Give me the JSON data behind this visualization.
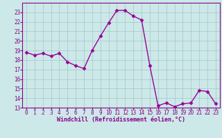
{
  "x": [
    0,
    1,
    2,
    3,
    4,
    5,
    6,
    7,
    8,
    9,
    10,
    11,
    12,
    13,
    14,
    15,
    16,
    17,
    18,
    19,
    20,
    21,
    22,
    23
  ],
  "y": [
    18.8,
    18.5,
    18.7,
    18.4,
    18.7,
    17.8,
    17.4,
    17.1,
    19.0,
    20.5,
    21.9,
    23.2,
    23.2,
    22.6,
    22.2,
    17.4,
    13.2,
    13.5,
    13.1,
    13.4,
    13.5,
    14.8,
    14.7,
    13.4
  ],
  "line_color": "#990099",
  "marker_color": "#990099",
  "bg_color": "#cce8e8",
  "grid_color": "#aacccc",
  "axis_color": "#880088",
  "xlabel": "Windchill (Refroidissement éolien,°C)",
  "ylim_min": 13,
  "ylim_max": 24,
  "yticks": [
    13,
    14,
    15,
    16,
    17,
    18,
    19,
    20,
    21,
    22,
    23
  ],
  "xticks": [
    0,
    1,
    2,
    3,
    4,
    5,
    6,
    7,
    8,
    9,
    10,
    11,
    12,
    13,
    14,
    15,
    16,
    17,
    18,
    19,
    20,
    21,
    22,
    23
  ],
  "xlabel_fontsize": 6.0,
  "tick_fontsize": 5.5,
  "linewidth": 1.0,
  "markersize": 2.5
}
